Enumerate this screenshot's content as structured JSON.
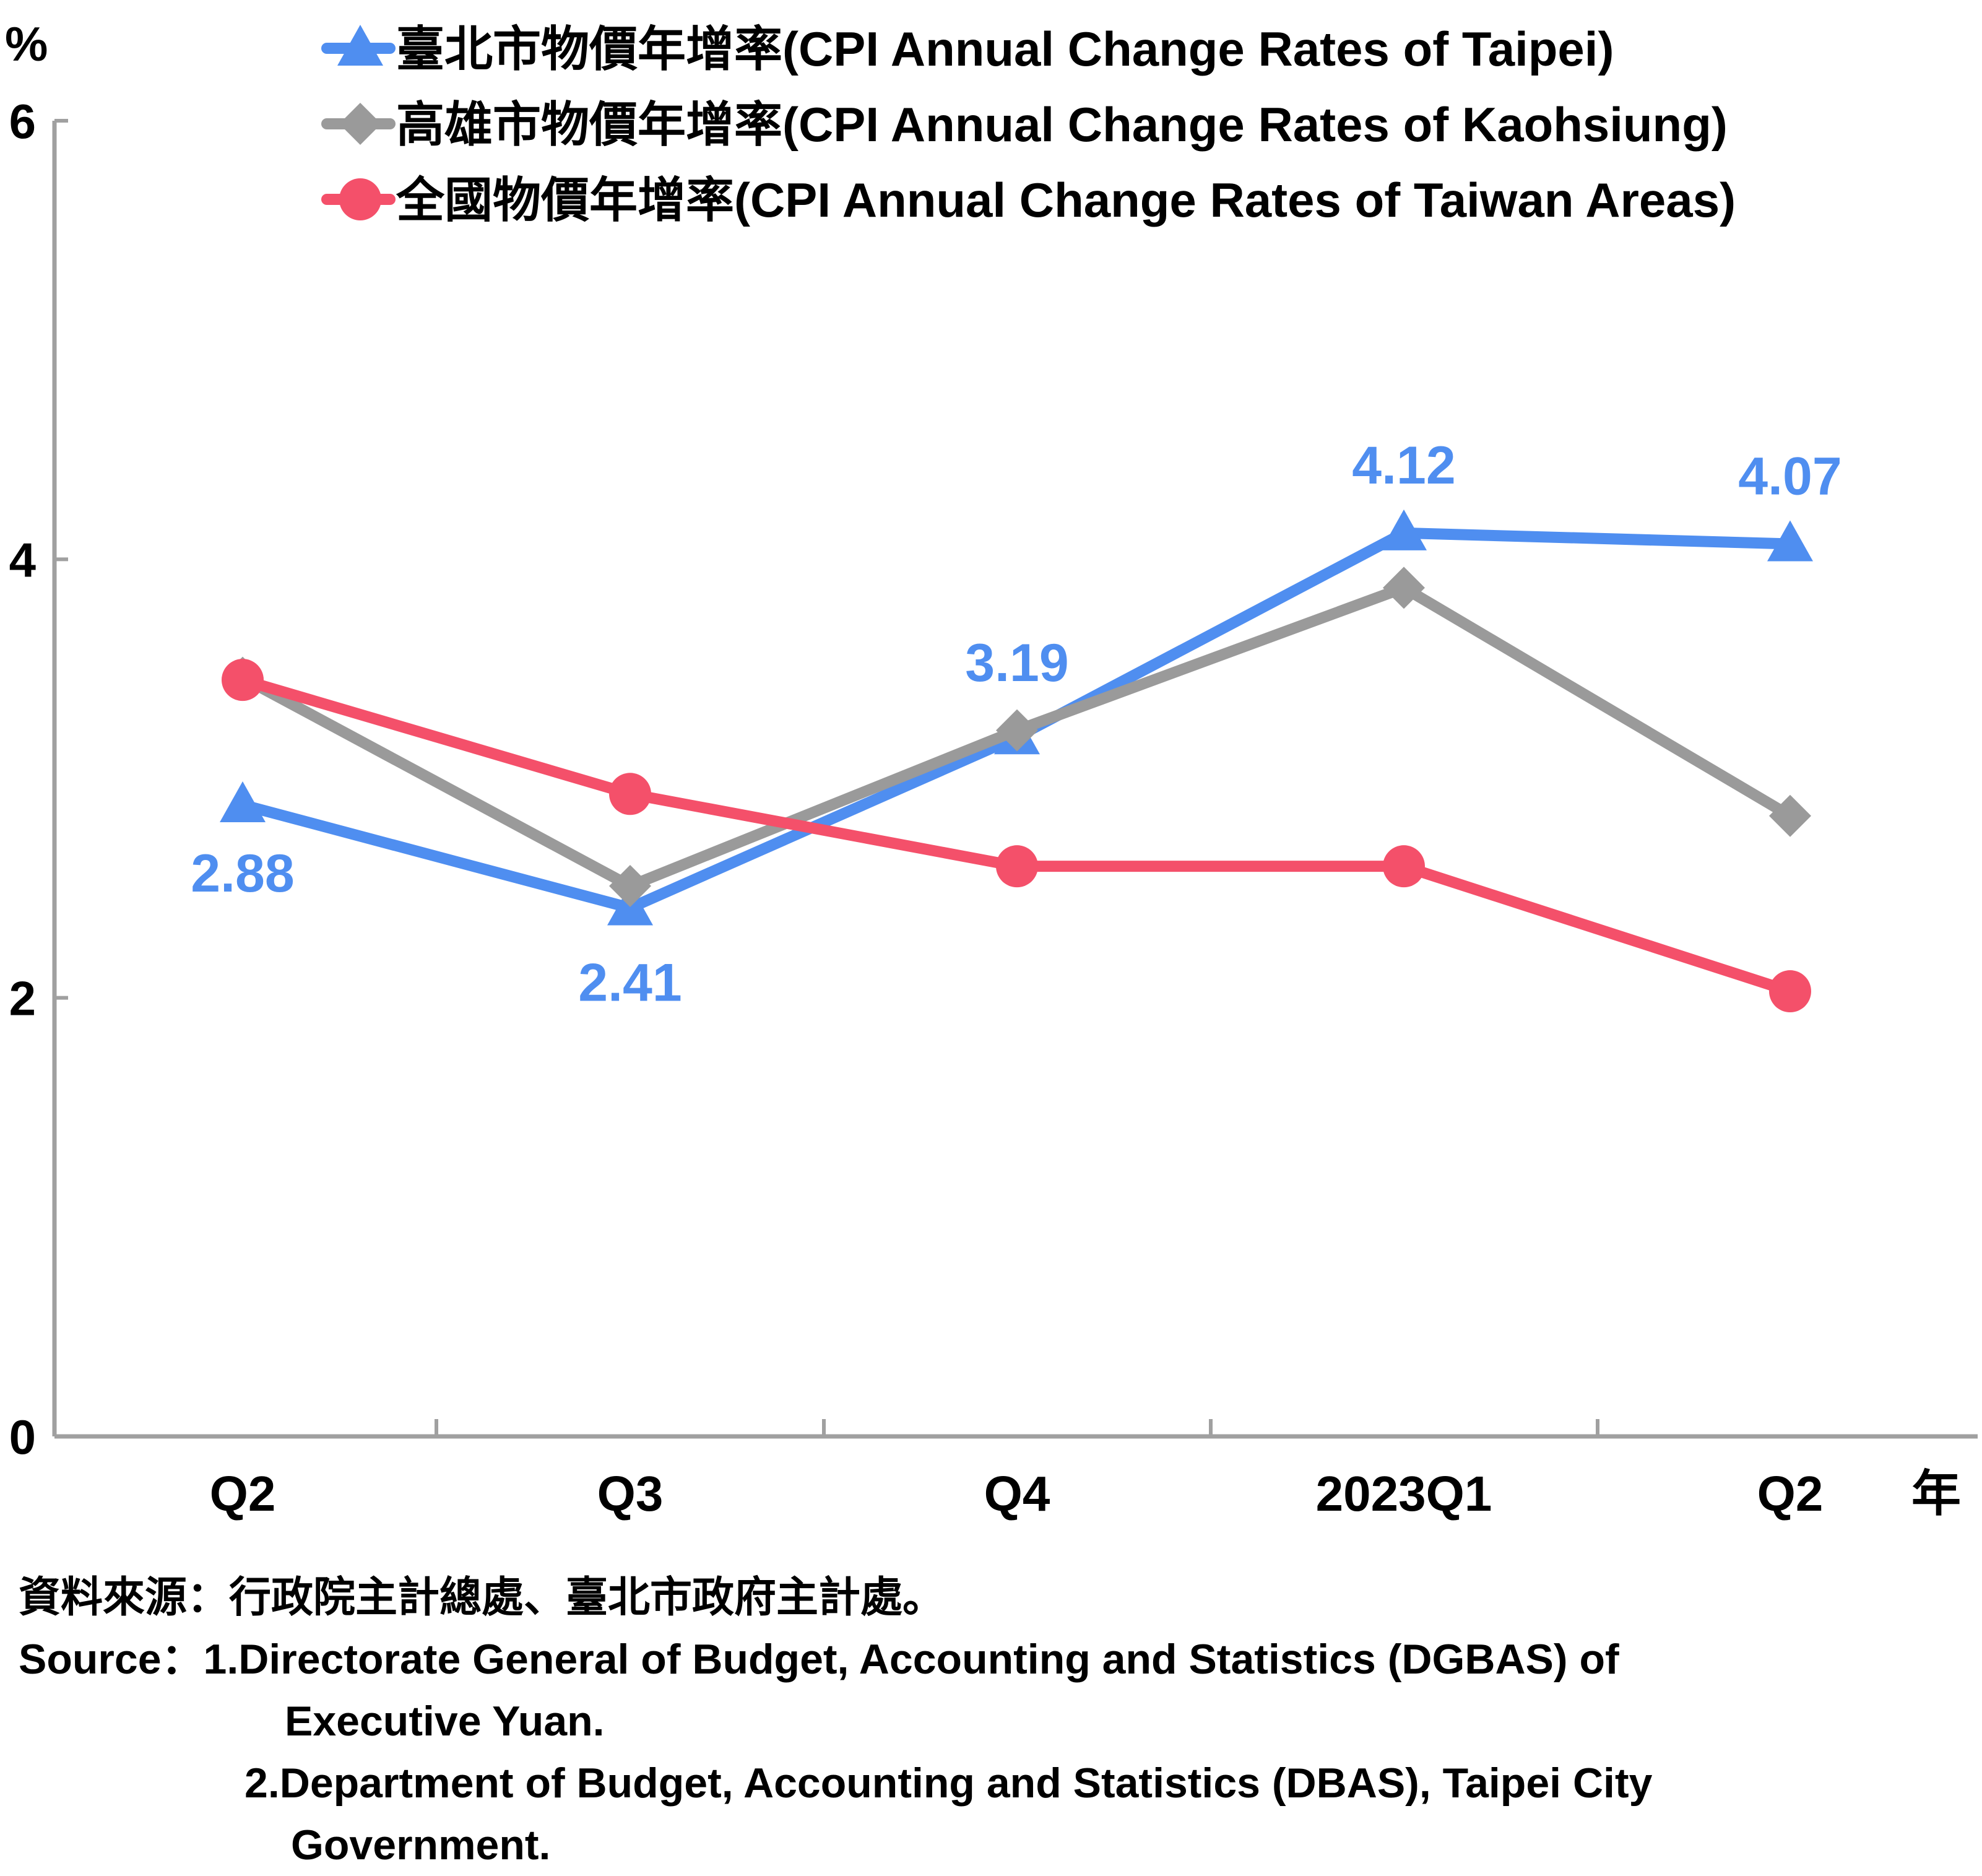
{
  "chart_data": {
    "type": "line",
    "y_unit": "%",
    "x_unit": "年",
    "categories": [
      "Q2",
      "Q3",
      "Q4",
      "2023Q1",
      "Q2"
    ],
    "ylim": [
      0,
      6
    ],
    "yticks": [
      "0",
      "2",
      "4",
      "6"
    ],
    "grid": false,
    "legend_position": "top-right",
    "series": [
      {
        "name": "臺北市物價年增率(CPI Annual Change Rates of Taipei)",
        "color": "#4F8EF0",
        "marker": "triangle",
        "values": [
          2.88,
          2.41,
          3.19,
          4.12,
          4.07
        ],
        "data_labels": [
          "2.88",
          "2.41",
          "3.19",
          "4.12",
          "4.07"
        ]
      },
      {
        "name": "高雄市物價年增率(CPI Annual Change Rates of Kaohsiung)",
        "color": "#9A9A9A",
        "marker": "diamond",
        "values": [
          3.46,
          2.51,
          3.22,
          3.87,
          2.83
        ]
      },
      {
        "name": "全國物價年增率(CPI Annual Change Rates of Taiwan Areas)",
        "color": "#F4506A",
        "marker": "circle",
        "values": [
          3.45,
          2.93,
          2.6,
          2.6,
          2.03
        ]
      }
    ]
  },
  "source": {
    "zh": "資料來源：行政院主計總處、臺北市政府主計處。",
    "en_1a": "Source：1.Directorate General of Budget, Accounting and Statistics (DGBAS) of",
    "en_1b": "Executive Yuan.",
    "en_2a": "2.Department of Budget, Accounting and Statistics (DBAS), Taipei City",
    "en_2b": "Government."
  }
}
